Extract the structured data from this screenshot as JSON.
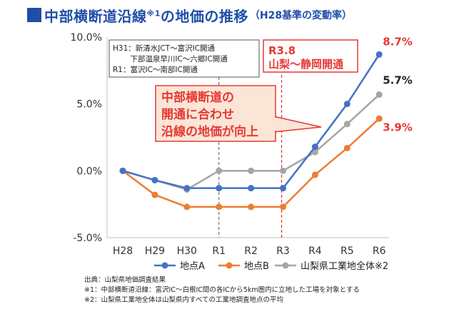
{
  "title": {
    "main": "中部横断道沿線",
    "sup": "※1",
    "main2": "の地価の推移",
    "sub": "（H28基準の変動率）"
  },
  "note_box": {
    "lines": [
      "H31：新清水JCT～富沢IC開通",
      "　　 下部温泉早川IC～六郷IC開通",
      "R1：富沢IC～南部IC開通"
    ]
  },
  "r38_label": {
    "line1": "R3.8",
    "line2": "山梨～静岡開通"
  },
  "callout": {
    "lines": [
      "中部横断道の",
      "開通に合わせ",
      "沿線の地価が向上"
    ]
  },
  "colors": {
    "title": "#1f4ea8",
    "seriesA": "#4472c4",
    "seriesB": "#ed7d31",
    "seriesC": "#a5a5a5",
    "accent_red": "#e53935",
    "callout_fill": "#fbe5d6"
  },
  "chart_data": {
    "type": "line",
    "categories": [
      "H28",
      "H29",
      "H30",
      "R1",
      "R2",
      "R3",
      "R4",
      "R5",
      "R6"
    ],
    "ylim": [
      -5,
      10
    ],
    "yticks": [
      -5,
      0,
      5,
      10
    ],
    "ytick_labels": [
      "-5.0%",
      "0.0%",
      "5.0%",
      "10.0%"
    ],
    "grid": false,
    "legend_position": "bottom",
    "series": [
      {
        "name": "地点A",
        "color": "#4472c4",
        "values": [
          0,
          -0.7,
          -1.3,
          -1.3,
          -1.3,
          -1.3,
          1.8,
          5.0,
          8.7
        ],
        "end_label": "8.7%"
      },
      {
        "name": "地点B",
        "color": "#ed7d31",
        "values": [
          0,
          -1.8,
          -2.7,
          -2.7,
          -2.7,
          -2.7,
          -0.3,
          1.7,
          3.9
        ],
        "end_label": "3.9%"
      },
      {
        "name": "山梨県工業地全体※2",
        "color": "#a5a5a5",
        "values": [
          0,
          -0.7,
          -1.4,
          0,
          0,
          0,
          1.4,
          3.5,
          5.7
        ],
        "end_label": "5.7%"
      }
    ]
  },
  "footer": {
    "source": "出典：山梨県地価調査結果",
    "note1": "※1：中部横断道沿線：富沢IC～白根IC間の各ICから5km圏内に立地した工場を対象とする",
    "note2": "※2：山梨県工業地全体は山梨県内すべての工業地調査地点の平均"
  }
}
